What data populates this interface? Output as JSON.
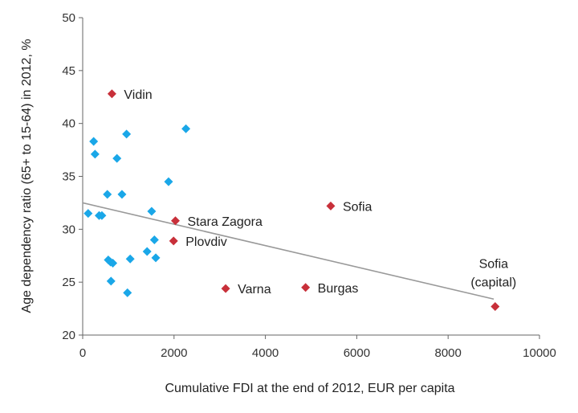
{
  "chart_data": {
    "type": "scatter",
    "xlabel": "Cumulative FDI at the end of 2012, EUR per capita",
    "ylabel": "Age dependency ratio (65+ to 15-64) in 2012, %",
    "xlim": [
      0,
      10000
    ],
    "ylim": [
      20,
      50
    ],
    "xticks": [
      "0",
      "2000",
      "4000",
      "6000",
      "8000",
      "10000"
    ],
    "yticks": [
      "20",
      "25",
      "30",
      "35",
      "40",
      "45",
      "50"
    ],
    "grid": false,
    "legend": "none",
    "colors": {
      "other": "#1aa7e8",
      "highlighted": "#c8303a",
      "trend": "#999999",
      "axis": "#666666"
    },
    "series": [
      {
        "values": [
          {
            "x": 120,
            "y": 31.5
          },
          {
            "x": 240,
            "y": 38.3
          },
          {
            "x": 270,
            "y": 37.1
          },
          {
            "x": 360,
            "y": 31.3
          },
          {
            "x": 420,
            "y": 31.3
          },
          {
            "x": 540,
            "y": 33.3
          },
          {
            "x": 560,
            "y": 27.1
          },
          {
            "x": 610,
            "y": 26.9
          },
          {
            "x": 620,
            "y": 25.1
          },
          {
            "x": 660,
            "y": 26.8
          },
          {
            "x": 750,
            "y": 36.7
          },
          {
            "x": 860,
            "y": 33.3
          },
          {
            "x": 960,
            "y": 39.0
          },
          {
            "x": 980,
            "y": 24.0
          },
          {
            "x": 1040,
            "y": 27.2
          },
          {
            "x": 1410,
            "y": 27.9
          },
          {
            "x": 1510,
            "y": 31.7
          },
          {
            "x": 1570,
            "y": 29.0
          },
          {
            "x": 1600,
            "y": 27.3
          },
          {
            "x": 1880,
            "y": 34.5
          },
          {
            "x": 2260,
            "y": 39.5
          }
        ]
      },
      {
        "values": [
          {
            "x": 640,
            "y": 42.8,
            "label": "Vidin"
          },
          {
            "x": 2030,
            "y": 30.8,
            "label": "Stara Zagora"
          },
          {
            "x": 1990,
            "y": 28.9,
            "label": "Plovdiv"
          },
          {
            "x": 3130,
            "y": 24.4,
            "label": "Varna"
          },
          {
            "x": 4880,
            "y": 24.5,
            "label": "Burgas"
          },
          {
            "x": 5430,
            "y": 32.2,
            "label": "Sofia"
          },
          {
            "x": 9030,
            "y": 22.7,
            "label": "Sofia",
            "label2": "(capital)"
          }
        ]
      }
    ],
    "trendline": {
      "x": [
        0,
        9000
      ],
      "y": [
        32.5,
        23.4
      ]
    }
  }
}
